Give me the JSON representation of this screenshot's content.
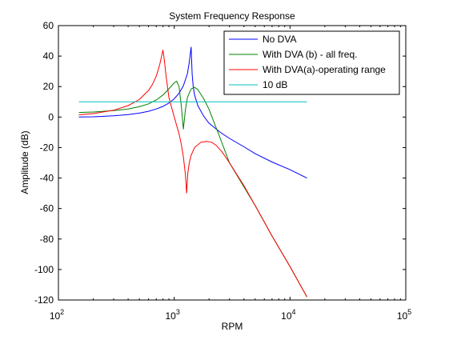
{
  "chart_data": {
    "type": "line",
    "title": "System Frequency Response",
    "xlabel": "RPM",
    "ylabel": "Amplitude (dB)",
    "xscale": "log",
    "xlim": [
      100,
      100000
    ],
    "ylim": [
      -120,
      60
    ],
    "grid": false,
    "legend_position": "top-right",
    "x_ticks": [
      {
        "value": 100,
        "base": "10",
        "exp": "2"
      },
      {
        "value": 1000,
        "base": "10",
        "exp": "3"
      },
      {
        "value": 10000,
        "base": "10",
        "exp": "4"
      },
      {
        "value": 100000,
        "base": "10",
        "exp": "5"
      }
    ],
    "y_ticks": [
      {
        "value": 60,
        "label": "60"
      },
      {
        "value": 40,
        "label": "40"
      },
      {
        "value": 20,
        "label": "20"
      },
      {
        "value": 0,
        "label": "0"
      },
      {
        "value": -20,
        "label": "-20"
      },
      {
        "value": -40,
        "label": "-40"
      },
      {
        "value": -60,
        "label": "-60"
      },
      {
        "value": -80,
        "label": "-80"
      },
      {
        "value": -100,
        "label": "-100"
      },
      {
        "value": -120,
        "label": "-120"
      }
    ],
    "series": [
      {
        "name": "No DVA",
        "color": "#0000ff",
        "x": [
          150,
          200,
          300,
          400,
          500,
          600,
          700,
          800,
          900,
          1000,
          1100,
          1200,
          1300,
          1350,
          1400,
          1430,
          1460,
          1500,
          1600,
          1800,
          2000,
          2500,
          3000,
          4000,
          5000,
          7000,
          10000,
          14000
        ],
        "y": [
          0,
          0.2,
          0.8,
          1.6,
          2.6,
          3.8,
          5.3,
          7.0,
          9.2,
          12,
          15.6,
          20.5,
          28.5,
          36,
          46,
          28,
          20,
          14.5,
          7.5,
          0.5,
          -4,
          -10,
          -14,
          -19.5,
          -24,
          -29.5,
          -34.5,
          -40
        ]
      },
      {
        "name": "With DVA (b) - all freq.",
        "color": "#008000",
        "x": [
          150,
          200,
          300,
          400,
          500,
          600,
          700,
          800,
          900,
          1000,
          1050,
          1100,
          1150,
          1180,
          1200,
          1250,
          1300,
          1400,
          1500,
          1600,
          1800,
          2000,
          2500,
          3000,
          5000,
          7000,
          10000,
          14000
        ],
        "y": [
          3,
          3.3,
          4.2,
          5.3,
          6.8,
          8.7,
          11.2,
          14.5,
          18.5,
          22.5,
          23.5,
          20,
          8,
          -2,
          -8,
          5,
          13,
          18.5,
          19.5,
          18,
          12,
          5,
          -14,
          -30,
          -58,
          -78,
          -98,
          -118
        ]
      },
      {
        "name": "With DVA(a)-operating range",
        "color": "#ff0000",
        "x": [
          150,
          200,
          300,
          400,
          500,
          600,
          650,
          700,
          750,
          780,
          800,
          820,
          850,
          900,
          1000,
          1100,
          1150,
          1200,
          1250,
          1280,
          1310,
          1350,
          1400,
          1500,
          1700,
          1900,
          2100,
          2300,
          2600,
          3000,
          4000,
          5000,
          7000,
          10000,
          14000
        ],
        "y": [
          1.5,
          2.3,
          4.5,
          7.5,
          11.5,
          17.5,
          21.5,
          27,
          34.5,
          40.5,
          44,
          38,
          27,
          13,
          0,
          -11,
          -17.5,
          -26,
          -38,
          -50,
          -37,
          -30,
          -25,
          -20,
          -16.5,
          -16,
          -16.5,
          -18.5,
          -23,
          -30,
          -45,
          -58,
          -78,
          -98,
          -118
        ]
      },
      {
        "name": "10 dB",
        "color": "#00bfbf",
        "x": [
          150,
          14000
        ],
        "y": [
          10,
          10
        ]
      }
    ]
  }
}
